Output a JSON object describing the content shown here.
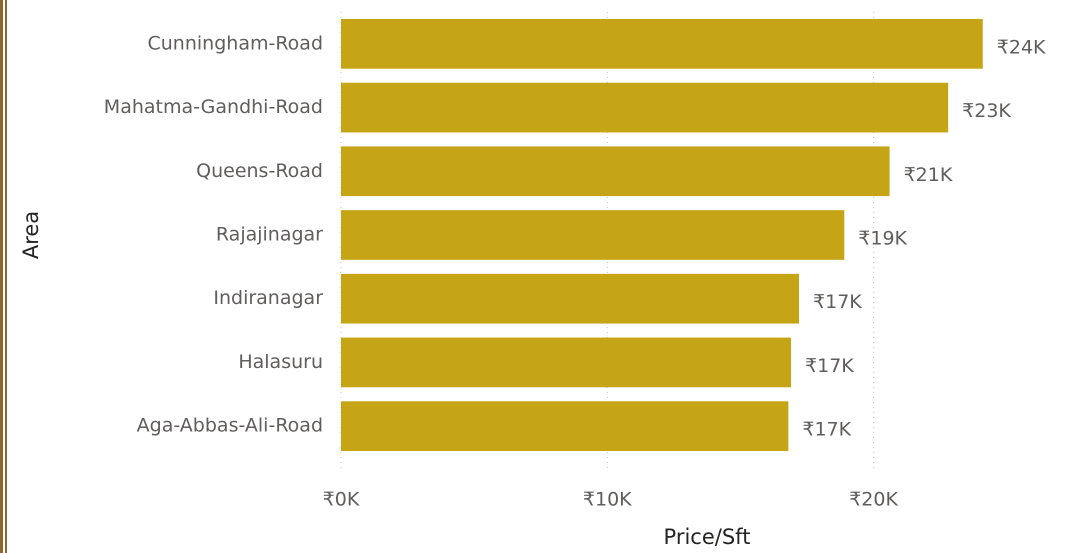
{
  "chart_data": {
    "type": "hbar",
    "categories": [
      "Cunningham-Road",
      "Mahatma-Gandhi-Road",
      "Queens-Road",
      "Rajajinagar",
      "Indiranagar",
      "Halasuru",
      "Aga-Abbas-Ali-Road"
    ],
    "values": [
      24100,
      22800,
      20600,
      18900,
      17200,
      16900,
      16800
    ],
    "value_labels": [
      "₹24K",
      "₹23K",
      "₹21K",
      "₹19K",
      "₹17K",
      "₹17K",
      "₹17K"
    ],
    "color": "#c5a516",
    "xlim": [
      0,
      27000
    ],
    "xticks": [
      {
        "value": 0,
        "label": "₹0K"
      },
      {
        "value": 10000,
        "label": "₹10K"
      },
      {
        "value": 20000,
        "label": "₹20K"
      }
    ],
    "grid": true,
    "x_label": "Price/Sft",
    "y_label": "Area"
  }
}
